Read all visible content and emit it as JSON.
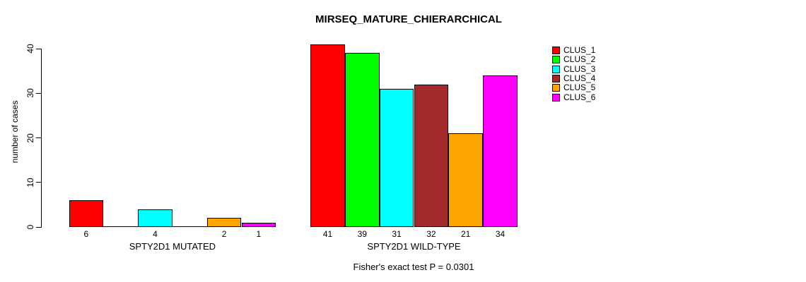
{
  "chart_data": {
    "type": "bar",
    "title": "MIRSEQ_MATURE_CHIERARCHICAL",
    "ylabel": "number of cases",
    "xlabel": "",
    "ylim": [
      0,
      40
    ],
    "yticks": [
      0,
      10,
      20,
      30,
      40
    ],
    "grid": false,
    "legend_position": "top-right",
    "categories": [
      "SPTY2D1 MUTATED",
      "SPTY2D1 WILD-TYPE"
    ],
    "series": [
      {
        "name": "CLUS_1",
        "color": "#FF0000",
        "values": [
          6,
          41
        ]
      },
      {
        "name": "CLUS_2",
        "color": "#00FF00",
        "values": [
          0,
          39
        ]
      },
      {
        "name": "CLUS_3",
        "color": "#00FFFF",
        "values": [
          4,
          31
        ]
      },
      {
        "name": "CLUS_4",
        "color": "#A52A2A",
        "values": [
          0,
          32
        ]
      },
      {
        "name": "CLUS_5",
        "color": "#FFA500",
        "values": [
          2,
          21
        ]
      },
      {
        "name": "CLUS_6",
        "color": "#FF00FF",
        "values": [
          1,
          34
        ]
      }
    ],
    "bar_value_labels": [
      [
        "6",
        "",
        "4",
        "",
        "2",
        "1"
      ],
      [
        "41",
        "39",
        "31",
        "32",
        "21",
        "34"
      ]
    ],
    "annotation": "Fisher's exact test P = 0.0301",
    "axis_color": "#000000",
    "background_color": "#FFFFFF"
  }
}
